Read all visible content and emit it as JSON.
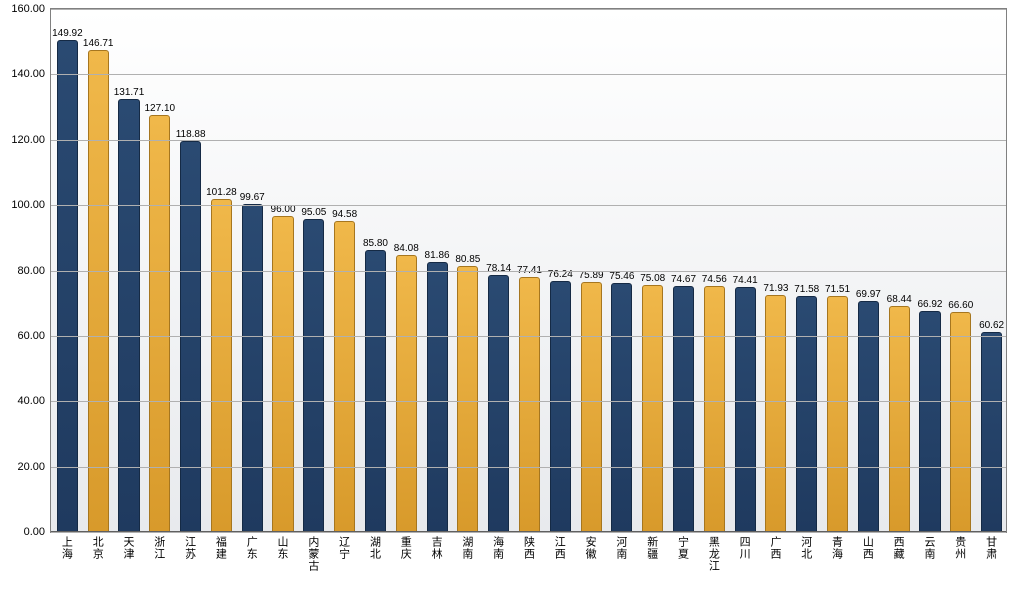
{
  "chart": {
    "type": "bar",
    "background_gradient": [
      "#ffffff",
      "#e8eaed"
    ],
    "border_color": "#808080",
    "grid_color": "#b0b0b0",
    "ylim": [
      0,
      160
    ],
    "ytick_step": 20,
    "ytick_decimals": 2,
    "value_label_decimals": 2,
    "value_label_fontsize": 10,
    "ytick_fontsize": 11,
    "xtick_fontsize": 11,
    "bar_width_ratio": 0.62,
    "colors": {
      "dark": {
        "fill_top": "#2a4a72",
        "fill_bottom": "#1f3a5f",
        "border": "#152a45"
      },
      "gold": {
        "fill_top": "#f0b84a",
        "fill_bottom": "#d89a2b",
        "border": "#a6761f"
      }
    },
    "categories": [
      "上海",
      "北京",
      "天津",
      "浙江",
      "江苏",
      "福建",
      "广东",
      "山东",
      "内蒙古",
      "辽宁",
      "湖北",
      "重庆",
      "吉林",
      "湖南",
      "海南",
      "陕西",
      "江西",
      "安徽",
      "河南",
      "新疆",
      "宁夏",
      "黑龙江",
      "四川",
      "广西",
      "河北",
      "青海",
      "山西",
      "西藏",
      "云南",
      "贵州",
      "甘肃"
    ],
    "values": [
      149.92,
      146.71,
      131.71,
      127.1,
      118.88,
      101.28,
      99.67,
      96.0,
      95.05,
      94.58,
      85.8,
      84.08,
      81.86,
      80.85,
      78.14,
      77.41,
      76.24,
      75.89,
      75.46,
      75.08,
      74.67,
      74.56,
      74.41,
      71.93,
      71.58,
      71.51,
      69.97,
      68.44,
      66.92,
      66.6,
      60.62
    ],
    "bar_color_class": [
      "dark",
      "gold",
      "dark",
      "gold",
      "dark",
      "gold",
      "dark",
      "gold",
      "dark",
      "gold",
      "dark",
      "gold",
      "dark",
      "gold",
      "dark",
      "gold",
      "dark",
      "gold",
      "dark",
      "gold",
      "dark",
      "gold",
      "dark",
      "gold",
      "dark",
      "gold",
      "dark",
      "gold",
      "dark",
      "gold",
      "dark"
    ]
  }
}
